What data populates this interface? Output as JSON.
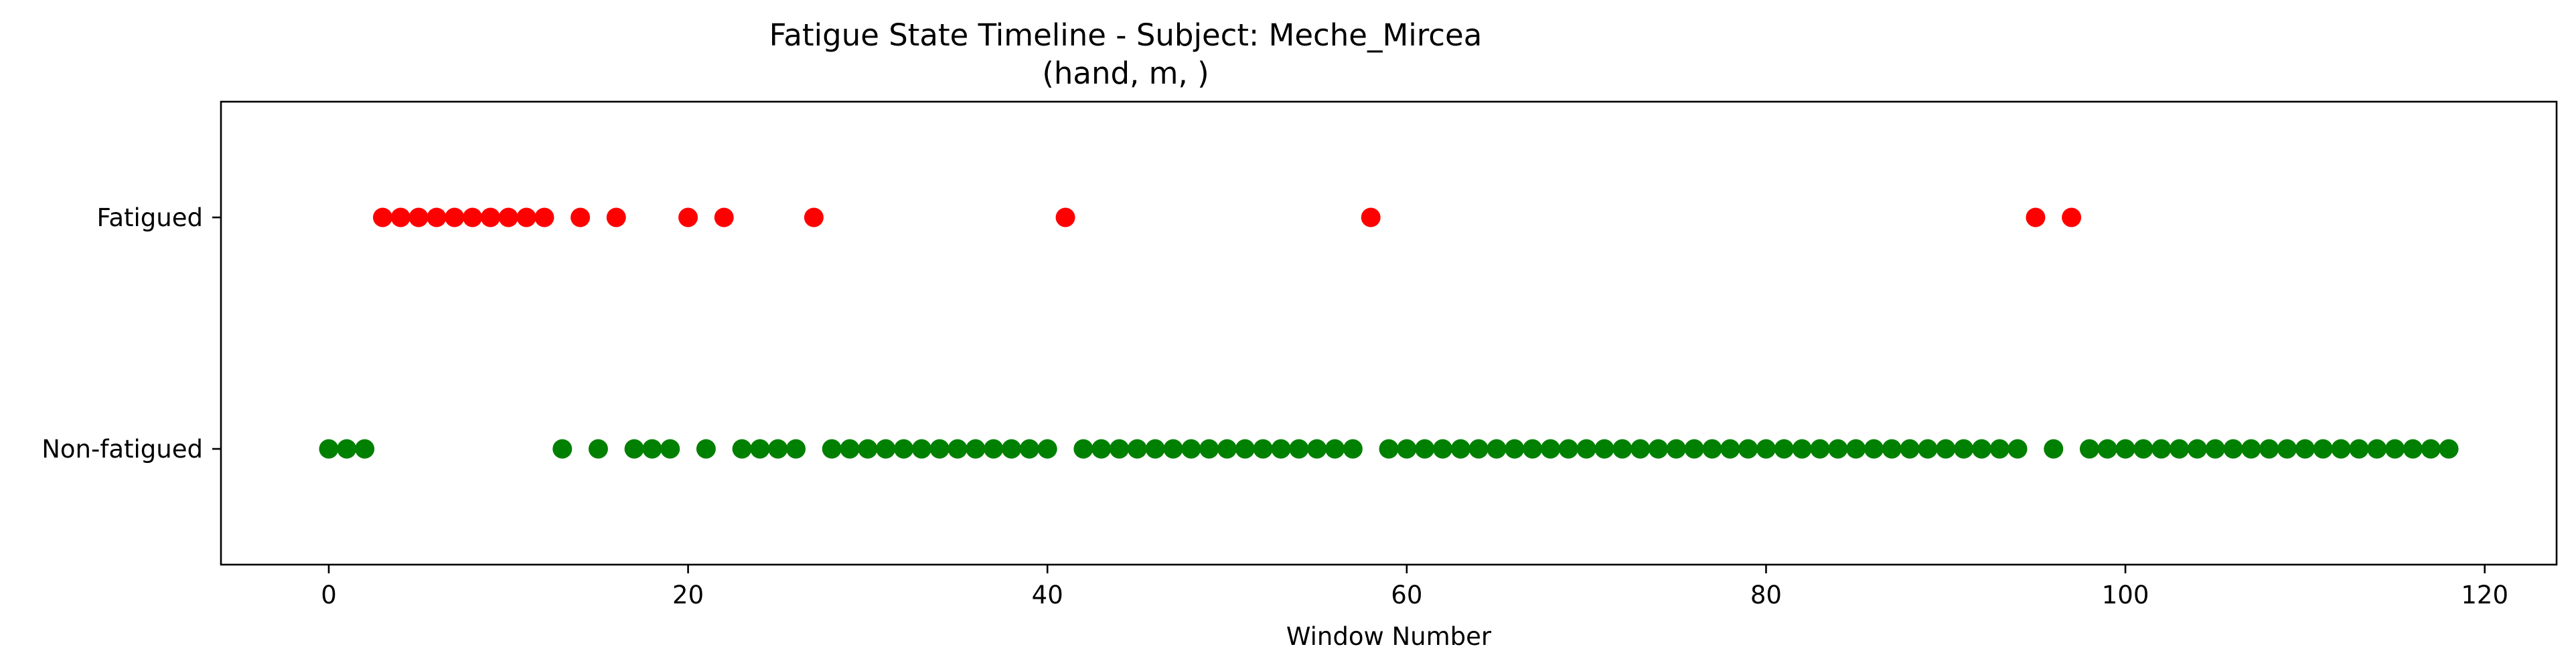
{
  "chart_data": {
    "type": "scatter",
    "title": "Fatigue State Timeline - Subject: Meche_Mircea",
    "subtitle": "(hand, m, )",
    "xlabel": "Window Number",
    "ylabel": "",
    "xlim": [
      -6,
      124
    ],
    "ylim": [
      -0.5,
      1.5
    ],
    "x_ticks": [
      0,
      20,
      40,
      60,
      80,
      100,
      120
    ],
    "y_ticks": [
      {
        "value": 1,
        "label": "Fatigued"
      },
      {
        "value": 0,
        "label": "Non-fatigued"
      }
    ],
    "grid": false,
    "colors": {
      "fatigued": "#ff0000",
      "non_fatigued": "#008000"
    },
    "series": [
      {
        "state": 1,
        "color": "#ff0000",
        "x": [
          3,
          4,
          5,
          6,
          7,
          8,
          9,
          10,
          11,
          12,
          14,
          16,
          20,
          22,
          27,
          41,
          58,
          95,
          97
        ]
      },
      {
        "state": 0,
        "color": "#008000",
        "x": [
          0,
          1,
          2,
          13,
          15,
          17,
          18,
          19,
          21,
          23,
          24,
          25,
          26,
          28,
          29,
          30,
          31,
          32,
          33,
          34,
          35,
          36,
          37,
          38,
          39,
          40,
          42,
          43,
          44,
          45,
          46,
          47,
          48,
          49,
          50,
          51,
          52,
          53,
          54,
          55,
          56,
          57,
          59,
          60,
          61,
          62,
          63,
          64,
          65,
          66,
          67,
          68,
          69,
          70,
          71,
          72,
          73,
          74,
          75,
          76,
          77,
          78,
          79,
          80,
          81,
          82,
          83,
          84,
          85,
          86,
          87,
          88,
          89,
          90,
          91,
          92,
          93,
          94,
          96,
          98,
          99,
          100,
          101,
          102,
          103,
          104,
          105,
          106,
          107,
          108,
          109,
          110,
          111,
          112,
          113,
          114,
          115,
          116,
          117,
          118
        ]
      }
    ]
  }
}
